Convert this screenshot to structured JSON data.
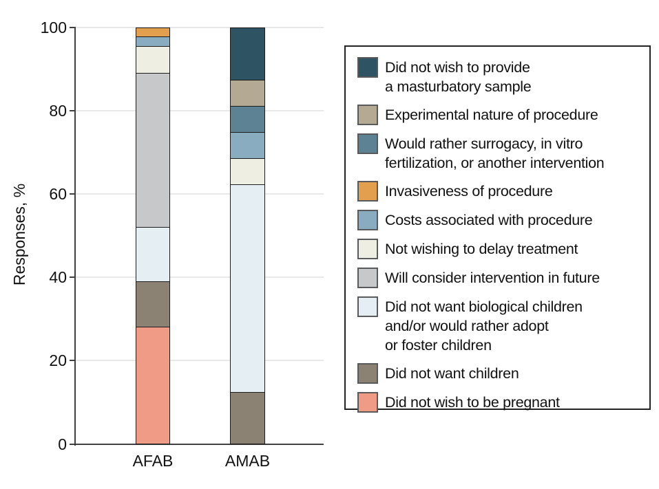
{
  "chart_data": {
    "type": "bar",
    "stacked": true,
    "title": "",
    "xlabel": "",
    "ylabel": "Responses, %",
    "ylim": [
      0,
      100
    ],
    "yticks": [
      0,
      20,
      40,
      60,
      80,
      100
    ],
    "grid": true,
    "legend_position": "right",
    "categories": [
      "AFAB",
      "AMAB"
    ],
    "series": [
      {
        "name": "Did not wish to provide\na masturbatory sample",
        "color": "#2E5363",
        "values": [
          0,
          12.5
        ]
      },
      {
        "name": "Experimental nature of procedure",
        "color": "#B4AA94",
        "values": [
          0,
          6.25
        ]
      },
      {
        "name": "Would rather surrogacy, in vitro\nfertilization, or another intervention",
        "color": "#5D8294",
        "values": [
          0,
          6.25
        ]
      },
      {
        "name": "Invasiveness of procedure",
        "color": "#E2A04E",
        "values": [
          2.1,
          0
        ]
      },
      {
        "name": "Costs associated with procedure",
        "color": "#8AACC0",
        "values": [
          2.2,
          6.25
        ]
      },
      {
        "name": "Not wishing to delay treatment",
        "color": "#EFEEE2",
        "values": [
          6.5,
          6.25
        ]
      },
      {
        "name": "Will consider intervention in future",
        "color": "#C7C8CA",
        "values": [
          37,
          0
        ]
      },
      {
        "name": "Did not want biological children\nand/or would rather adopt\nor foster children",
        "color": "#E5EEF3",
        "values": [
          13,
          50
        ]
      },
      {
        "name": "Did not want children",
        "color": "#8B8273",
        "values": [
          10.9,
          12.5
        ]
      },
      {
        "name": "Did not wish to be pregnant",
        "color": "#F09B86",
        "values": [
          28.3,
          0
        ]
      }
    ],
    "style": {
      "axis_color": "#404040",
      "grid_color": "#e8e8e8",
      "bar_border_color": "#1b1b1b",
      "swatch_border_color": "#58595b",
      "legend_border_color": "#222222"
    }
  }
}
